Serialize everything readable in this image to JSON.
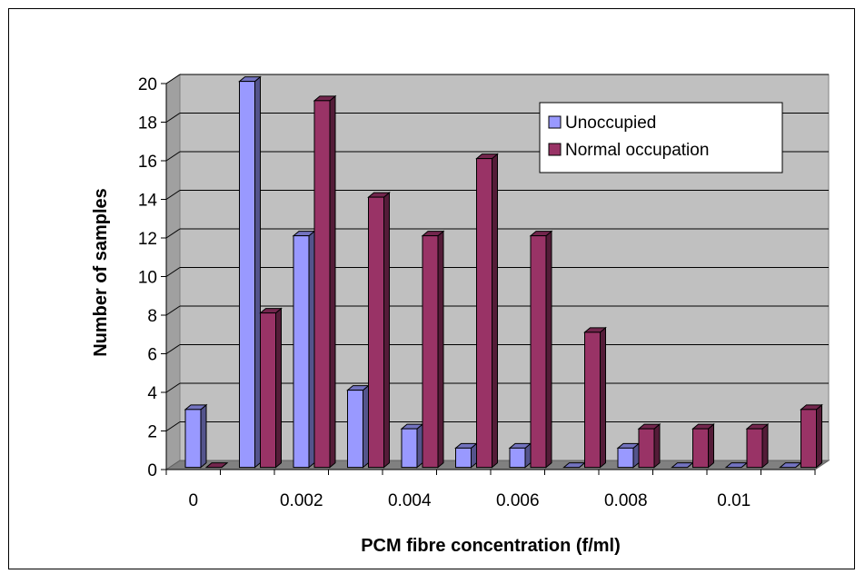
{
  "chart_data": {
    "type": "bar",
    "title": "",
    "xlabel": "PCM fibre concentration (f/ml)",
    "ylabel": "Number of samples",
    "ylim": [
      0,
      20
    ],
    "ytick_step": 2,
    "x_tick_labels": [
      "0",
      "",
      "0.002",
      "",
      "0.004",
      "",
      "0.006",
      "",
      "0.008",
      "",
      "0.01",
      ""
    ],
    "categories": [
      "0",
      "0.001",
      "0.002",
      "0.003",
      "0.004",
      "0.005",
      "0.006",
      "0.007",
      "0.008",
      "0.009",
      "0.01",
      "0.011"
    ],
    "series": [
      {
        "name": "Unoccupied",
        "color": "#9999ff",
        "values": [
          3,
          20,
          12,
          4,
          2,
          1,
          1,
          0,
          1,
          0,
          0,
          0
        ]
      },
      {
        "name": "Normal occupation",
        "color": "#993366",
        "values": [
          0,
          8,
          19,
          14,
          12,
          16,
          12,
          7,
          2,
          2,
          2,
          3
        ]
      }
    ],
    "grid": true,
    "legend_position": "top-right",
    "plot_background": "#c0c0c0"
  }
}
